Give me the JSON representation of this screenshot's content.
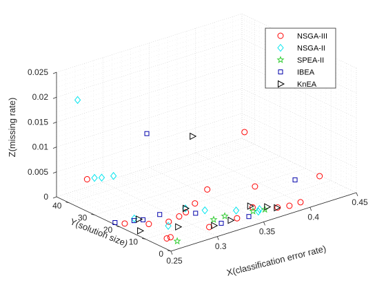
{
  "chart_data": {
    "type": "scatter",
    "projection": "3d",
    "title": "",
    "xlabel": "X(classification error rate)",
    "ylabel": "Y(solution size)",
    "zlabel": "Z(missing rate)",
    "xlim": [
      0.25,
      0.45
    ],
    "ylim": [
      0,
      45
    ],
    "zlim": [
      0,
      0.025
    ],
    "xticks": [
      "0.25",
      "0.3",
      "0.35",
      "0.4",
      "0.45"
    ],
    "yticks": [
      "0",
      "10",
      "20",
      "30",
      "40"
    ],
    "zticks": [
      "0",
      "0.005",
      "0.01",
      "0.015",
      "0.02",
      "0.025"
    ],
    "grid": true,
    "legend_position": "top-right",
    "series": [
      {
        "name": "NSGA-III",
        "marker": "circle",
        "color": "#ff0000",
        "points": [
          {
            "x": 0.272,
            "y": 41,
            "z": 0.0032
          },
          {
            "x": 0.365,
            "y": 13,
            "z": 0.014
          },
          {
            "x": 0.255,
            "y": 20,
            "z": 0.0004
          },
          {
            "x": 0.27,
            "y": 16,
            "z": 0.0004
          },
          {
            "x": 0.262,
            "y": 6,
            "z": 0.0004
          },
          {
            "x": 0.266,
            "y": 6,
            "z": 0.0004
          },
          {
            "x": 0.286,
            "y": 14,
            "z": 0.0004
          },
          {
            "x": 0.3,
            "y": 15,
            "z": 0.0004
          },
          {
            "x": 0.31,
            "y": 16,
            "z": 0.0004
          },
          {
            "x": 0.328,
            "y": 19,
            "z": 0.0004
          },
          {
            "x": 0.355,
            "y": 24,
            "z": 0.0004
          },
          {
            "x": 0.305,
            "y": 5,
            "z": 0.0004
          },
          {
            "x": 0.335,
            "y": 5,
            "z": 0.0004
          },
          {
            "x": 0.36,
            "y": 8,
            "z": 0.0004
          },
          {
            "x": 0.39,
            "y": 18,
            "z": 0.0004
          },
          {
            "x": 0.376,
            "y": 4,
            "z": 0.0004
          },
          {
            "x": 0.386,
            "y": 3,
            "z": 0.0004
          },
          {
            "x": 0.398,
            "y": 3,
            "z": 0.0004
          },
          {
            "x": 0.446,
            "y": 13,
            "z": 0.0004
          }
        ]
      },
      {
        "name": "NSGA-II",
        "marker": "diamond",
        "color": "#00e5ee",
        "points": [
          {
            "x": 0.27,
            "y": 44,
            "z": 0.0185
          },
          {
            "x": 0.28,
            "y": 41,
            "z": 0.003
          },
          {
            "x": 0.285,
            "y": 40,
            "z": 0.003
          },
          {
            "x": 0.295,
            "y": 39,
            "z": 0.003
          },
          {
            "x": 0.268,
            "y": 21,
            "z": 0.0004
          },
          {
            "x": 0.28,
            "y": 12,
            "z": 0.0004
          },
          {
            "x": 0.315,
            "y": 18,
            "z": 0.0004
          },
          {
            "x": 0.325,
            "y": 14,
            "z": 0.0004
          },
          {
            "x": 0.345,
            "y": 9,
            "z": 0.0004
          },
          {
            "x": 0.358,
            "y": 5,
            "z": 0.0004
          },
          {
            "x": 0.362,
            "y": 6,
            "z": 0.0004
          }
        ]
      },
      {
        "name": "SPEA-II",
        "marker": "star",
        "color": "#33cc33",
        "points": [
          {
            "x": 0.265,
            "y": 3,
            "z": 0.0004
          },
          {
            "x": 0.318,
            "y": 8,
            "z": 0.0004
          },
          {
            "x": 0.33,
            "y": 8,
            "z": 0.0004
          },
          {
            "x": 0.355,
            "y": 6,
            "z": 0.0004
          },
          {
            "x": 0.365,
            "y": 5,
            "z": 0.0004
          }
        ]
      },
      {
        "name": "IBEA",
        "marker": "square",
        "color": "#0000aa",
        "points": [
          {
            "x": 0.32,
            "y": 35,
            "z": 0.011
          },
          {
            "x": 0.25,
            "y": 22,
            "z": 0.0004
          },
          {
            "x": 0.265,
            "y": 20,
            "z": 0.0004
          },
          {
            "x": 0.272,
            "y": 19,
            "z": 0.0004
          },
          {
            "x": 0.29,
            "y": 19,
            "z": 0.0004
          },
          {
            "x": 0.315,
            "y": 14,
            "z": 0.0004
          },
          {
            "x": 0.318,
            "y": 5,
            "z": 0.0004
          },
          {
            "x": 0.345,
            "y": 4,
            "z": 0.0004
          },
          {
            "x": 0.425,
            "y": 15,
            "z": 0.0004
          }
        ]
      },
      {
        "name": "KnEA",
        "marker": "triangle-right",
        "color": "#000000",
        "points": [
          {
            "x": 0.35,
            "y": 28,
            "z": 0.0104
          },
          {
            "x": 0.255,
            "y": 14,
            "z": 0.0004
          },
          {
            "x": 0.27,
            "y": 20,
            "z": 0.0004
          },
          {
            "x": 0.285,
            "y": 10,
            "z": 0.0004
          },
          {
            "x": 0.315,
            "y": 18,
            "z": 0.0004
          },
          {
            "x": 0.31,
            "y": 5,
            "z": 0.0004
          },
          {
            "x": 0.328,
            "y": 5,
            "z": 0.0004
          },
          {
            "x": 0.36,
            "y": 9,
            "z": 0.0004
          },
          {
            "x": 0.37,
            "y": 6,
            "z": 0.0004
          },
          {
            "x": 0.375,
            "y": 4,
            "z": 0.0004
          }
        ]
      }
    ]
  }
}
